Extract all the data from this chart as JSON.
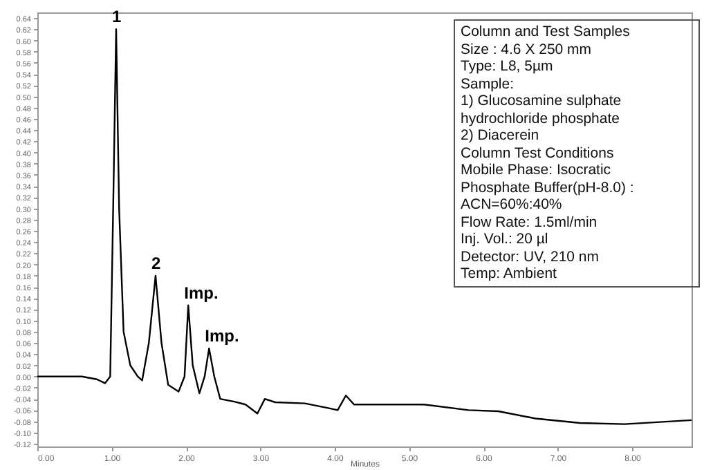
{
  "chart_data": {
    "type": "line",
    "xlabel": "Minutes",
    "x": [
      0,
      0.3,
      0.6,
      0.8,
      0.91,
      0.98,
      1.02,
      1.06,
      1.1,
      1.16,
      1.25,
      1.35,
      1.41,
      1.5,
      1.59,
      1.67,
      1.76,
      1.9,
      1.98,
      2.03,
      2.09,
      2.18,
      2.25,
      2.31,
      2.38,
      2.46,
      2.65,
      2.8,
      2.96,
      3.06,
      3.2,
      3.6,
      3.9,
      4.04,
      4.15,
      4.26,
      5.2,
      5.8,
      6.2,
      6.7,
      7.3,
      7.9,
      8.8
    ],
    "series": [
      {
        "color": "#000000",
        "values": [
          0.0,
          0.0,
          0.0,
          -0.005,
          -0.012,
          0.0,
          0.3,
          0.62,
          0.3,
          0.08,
          0.02,
          0.0,
          -0.007,
          0.06,
          0.18,
          0.06,
          -0.015,
          -0.027,
          0.0,
          0.127,
          0.02,
          -0.03,
          0.0,
          0.05,
          0.0,
          -0.04,
          -0.045,
          -0.05,
          -0.066,
          -0.04,
          -0.046,
          -0.048,
          -0.056,
          -0.06,
          -0.034,
          -0.05,
          -0.05,
          -0.06,
          -0.062,
          -0.075,
          -0.083,
          -0.085,
          -0.078
        ]
      }
    ],
    "xlim": [
      0,
      8.8
    ],
    "xticks": [
      {
        "value": 0,
        "label": "0.00"
      },
      {
        "value": 1,
        "label": "1.00"
      },
      {
        "value": 2,
        "label": "2.00"
      },
      {
        "value": 3,
        "label": "3.00"
      },
      {
        "value": 4,
        "label": "4.00"
      },
      {
        "value": 5,
        "label": "5.00"
      },
      {
        "value": 6,
        "label": "6.00"
      },
      {
        "value": 7,
        "label": "7.00"
      },
      {
        "value": 8,
        "label": "8.00"
      }
    ],
    "ylim": [
      -0.125,
      0.65
    ],
    "yticks": [
      {
        "value": -0.12,
        "label": "-0.12"
      },
      {
        "value": -0.1,
        "label": "-0.10"
      },
      {
        "value": -0.08,
        "label": "-0.08"
      },
      {
        "value": -0.06,
        "label": "-0.06"
      },
      {
        "value": -0.04,
        "label": "-0.04"
      },
      {
        "value": -0.02,
        "label": "-0.02"
      },
      {
        "value": 0,
        "label": "0.00"
      },
      {
        "value": 0.02,
        "label": "0.02"
      },
      {
        "value": 0.04,
        "label": "0.04"
      },
      {
        "value": 0.06,
        "label": "0.06"
      },
      {
        "value": 0.08,
        "label": "0.08"
      },
      {
        "value": 0.1,
        "label": "0.10"
      },
      {
        "value": 0.12,
        "label": "0.12"
      },
      {
        "value": 0.14,
        "label": "0.14"
      },
      {
        "value": 0.16,
        "label": "0.16"
      },
      {
        "value": 0.18,
        "label": "0.18"
      },
      {
        "value": 0.2,
        "label": "0.20"
      },
      {
        "value": 0.22,
        "label": "0.22"
      },
      {
        "value": 0.24,
        "label": "0.24"
      },
      {
        "value": 0.26,
        "label": "0.26"
      },
      {
        "value": 0.28,
        "label": "0.28"
      },
      {
        "value": 0.3,
        "label": "0.30"
      },
      {
        "value": 0.32,
        "label": "0.32"
      },
      {
        "value": 0.34,
        "label": "0.34"
      },
      {
        "value": 0.36,
        "label": "0.36"
      },
      {
        "value": 0.38,
        "label": "0.38"
      },
      {
        "value": 0.4,
        "label": "0.40"
      },
      {
        "value": 0.42,
        "label": "0.42"
      },
      {
        "value": 0.44,
        "label": "0.44"
      },
      {
        "value": 0.46,
        "label": "0.46"
      },
      {
        "value": 0.48,
        "label": "0.48"
      },
      {
        "value": 0.5,
        "label": "0.50"
      },
      {
        "value": 0.52,
        "label": "0.52"
      },
      {
        "value": 0.54,
        "label": "0.54"
      },
      {
        "value": 0.56,
        "label": "0.56"
      },
      {
        "value": 0.58,
        "label": "0.58"
      },
      {
        "value": 0.6,
        "label": "0.60"
      },
      {
        "value": 0.62,
        "label": "0.62"
      },
      {
        "value": 0.64,
        "label": "0.64"
      }
    ],
    "grid": false,
    "legend": false,
    "annotations": [
      {
        "text": "1",
        "x": 1.06,
        "y": 0.62
      },
      {
        "text": "2",
        "x": 1.59,
        "y": 0.18
      },
      {
        "text": "Imp.",
        "x": 2.03,
        "y": 0.127
      },
      {
        "text": "Imp.",
        "x": 2.31,
        "y": 0.05
      },
      "Column and Test Samples",
      "Size : 4.6 X 250 mm",
      "Type: L8, 5µm",
      "Sample:",
      "1) Glucosamine sulphate",
      "hydrochloride phosphate",
      "2) Diacerein",
      "Column Test Conditions",
      "Mobile Phase: Isocratic",
      "Phosphate Buffer(pH-8.0) :",
      "ACN=60%:40%",
      "Flow Rate: 1.5ml/min",
      "Inj. Vol.: 20 µl",
      "Detector: UV, 210 nm",
      "Temp: Ambient"
    ]
  }
}
